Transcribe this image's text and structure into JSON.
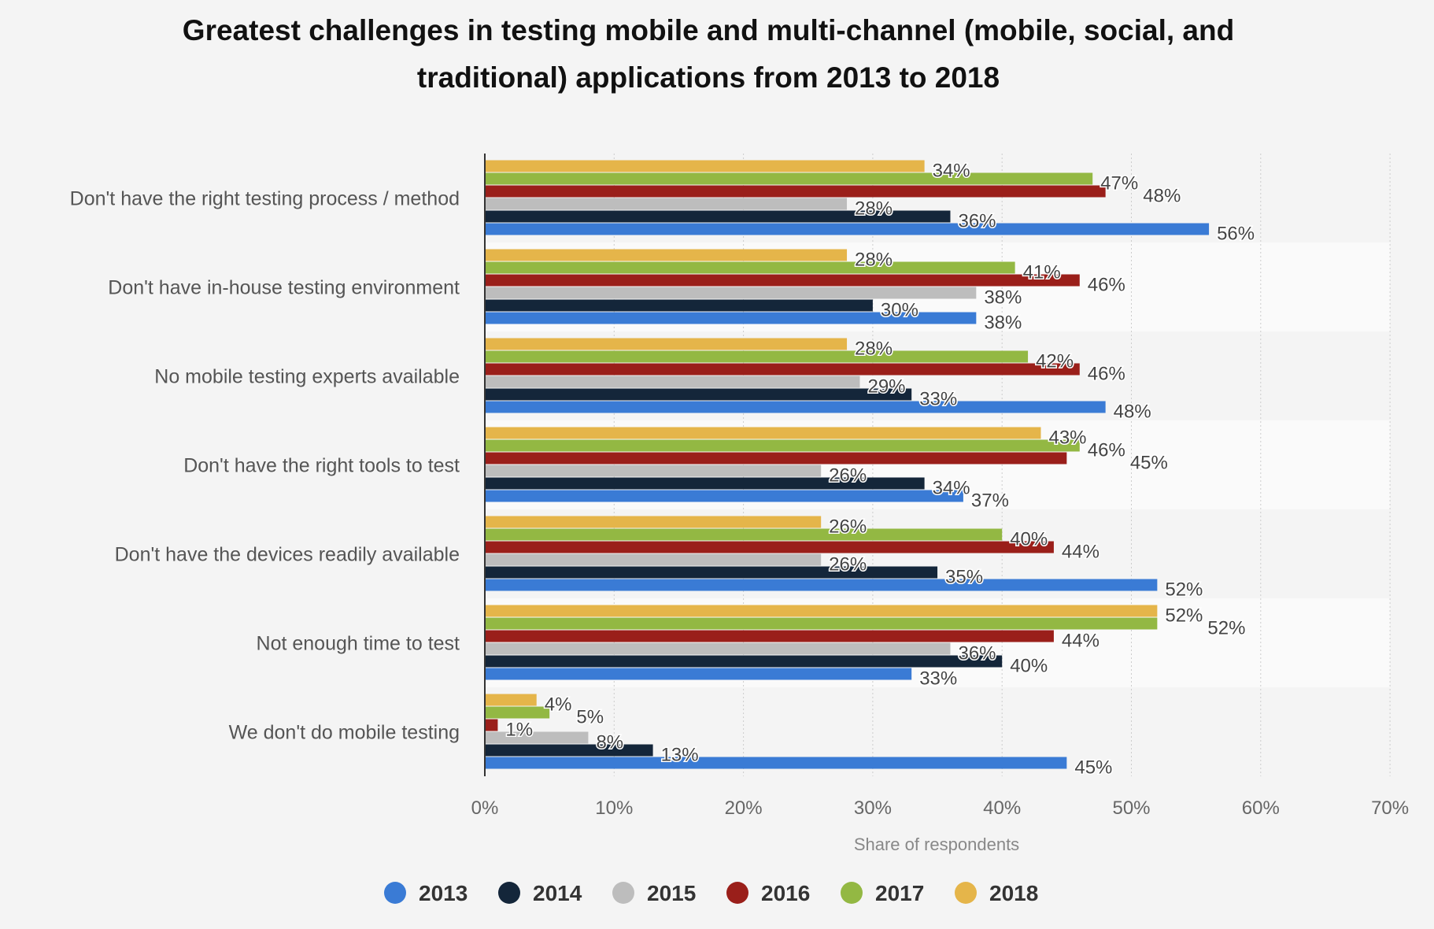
{
  "chart_data": {
    "type": "bar",
    "orientation": "horizontal",
    "title": "Greatest challenges in testing mobile and multi-channel (mobile, social, and traditional) applications from 2013 to 2018",
    "title_lines": [
      "Greatest challenges in testing mobile and multi-channel (mobile, social, and",
      "traditional) applications from 2013 to 2018"
    ],
    "xlabel": "Share of respondents",
    "ylabel": "",
    "xlim": [
      0,
      70
    ],
    "xticks": [
      "0%",
      "10%",
      "20%",
      "30%",
      "40%",
      "50%",
      "60%",
      "70%"
    ],
    "grid": true,
    "legend_placement": "bottom",
    "categories": [
      "Don't have the right testing process / method",
      "Don't have in-house testing environment",
      "No mobile testing experts available",
      "Don't have the right tools to test",
      "Don't have the devices readily available",
      "Not enough time to test",
      "We don't do mobile testing"
    ],
    "series": [
      {
        "name": "2013",
        "color": "#3a7bd5",
        "values": [
          56,
          38,
          48,
          37,
          52,
          33,
          45
        ]
      },
      {
        "name": "2014",
        "color": "#14263a",
        "values": [
          36,
          30,
          33,
          34,
          35,
          40,
          13
        ]
      },
      {
        "name": "2015",
        "color": "#bdbdbd",
        "values": [
          28,
          38,
          29,
          26,
          26,
          36,
          8
        ]
      },
      {
        "name": "2016",
        "color": "#9a1f1a",
        "values": [
          48,
          46,
          46,
          45,
          44,
          44,
          1
        ]
      },
      {
        "name": "2017",
        "color": "#93b843",
        "values": [
          47,
          41,
          42,
          46,
          40,
          52,
          5
        ]
      },
      {
        "name": "2018",
        "color": "#e5b54a",
        "values": [
          34,
          28,
          28,
          43,
          26,
          52,
          4
        ]
      }
    ],
    "value_suffix": "%"
  }
}
